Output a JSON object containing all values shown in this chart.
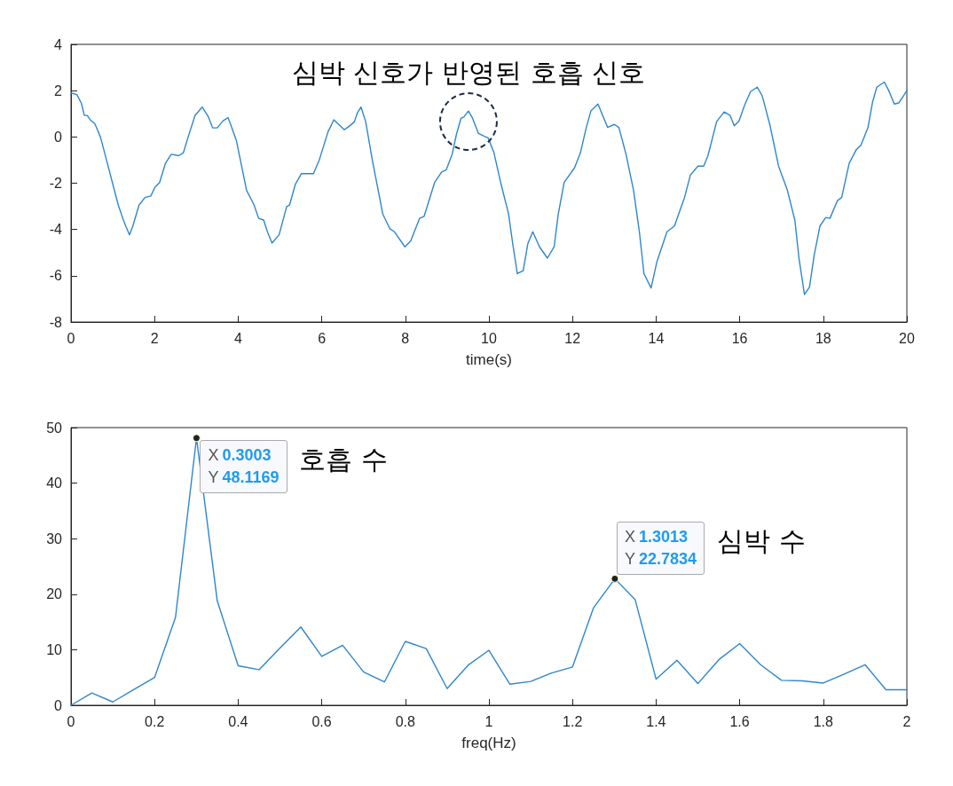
{
  "chart_data": [
    {
      "type": "line",
      "color": "#2f86cc",
      "xlabel": "time(s)",
      "xlim": [
        0,
        20
      ],
      "ylim": [
        -8,
        4
      ],
      "xticks": [
        0,
        2,
        4,
        6,
        8,
        10,
        12,
        14,
        16,
        18,
        20
      ],
      "yticks": [
        -8,
        -6,
        -4,
        -2,
        0,
        2,
        4
      ],
      "grid": false,
      "marker": "none",
      "line_style": "solid",
      "x": [
        0,
        0.14,
        0.25,
        0.32,
        0.39,
        0.46,
        0.57,
        0.64,
        0.71,
        0.85,
        0.99,
        1.13,
        1.24,
        1.31,
        1.4,
        1.48,
        1.63,
        1.77,
        1.91,
        2.01,
        2.12,
        2.26,
        2.4,
        2.58,
        2.69,
        2.83,
        2.97,
        3.14,
        3.29,
        3.39,
        3.5,
        3.64,
        3.76,
        3.82,
        3.96,
        4.2,
        4.38,
        4.49,
        4.61,
        4.7,
        4.81,
        4.98,
        5.16,
        5.23,
        5.37,
        5.51,
        5.8,
        5.94,
        6.15,
        6.29,
        6.54,
        6.64,
        6.78,
        6.85,
        6.94,
        7.05,
        7.21,
        7.46,
        7.63,
        7.74,
        7.99,
        8.13,
        8.34,
        8.45,
        8.7,
        8.87,
        8.98,
        9.12,
        9.22,
        9.33,
        9.4,
        9.51,
        9.61,
        9.75,
        9.89,
        9.98,
        10.12,
        10.29,
        10.47,
        10.57,
        10.68,
        10.82,
        10.93,
        11.05,
        11.21,
        11.4,
        11.56,
        11.66,
        11.8,
        12.05,
        12.19,
        12.33,
        12.44,
        12.61,
        12.72,
        12.84,
        13,
        13.11,
        13.28,
        13.46,
        13.6,
        13.71,
        13.88,
        14.02,
        14.26,
        14.44,
        14.54,
        14.68,
        14.82,
        15,
        15.14,
        15.24,
        15.45,
        15.63,
        15.77,
        15.87,
        15.98,
        16.12,
        16.26,
        16.42,
        16.54,
        16.72,
        16.93,
        17.14,
        17.32,
        17.42,
        17.55,
        17.67,
        17.78,
        17.92,
        18.06,
        18.16,
        18.34,
        18.44,
        18.62,
        18.79,
        18.9,
        19.07,
        19.18,
        19.28,
        19.46,
        19.56,
        19.7,
        19.81,
        20
      ],
      "values": [
        1.9,
        1.83,
        1.45,
        0.93,
        0.93,
        0.74,
        0.57,
        0.28,
        -0.04,
        -1,
        -1.97,
        -2.94,
        -3.52,
        -3.85,
        -4.23,
        -3.85,
        -2.94,
        -2.62,
        -2.55,
        -2.17,
        -1.97,
        -1.14,
        -0.75,
        -0.81,
        -0.68,
        0.15,
        0.93,
        1.29,
        0.86,
        0.39,
        0.39,
        0.7,
        0.83,
        0.54,
        -0.17,
        -2.3,
        -2.94,
        -3.52,
        -3.59,
        -4.1,
        -4.59,
        -4.23,
        -3.01,
        -2.94,
        -2.04,
        -1.59,
        -1.59,
        -1,
        0.22,
        0.74,
        0.31,
        0.44,
        0.65,
        1.03,
        1.29,
        0.67,
        -1,
        -3.33,
        -3.97,
        -4.1,
        -4.75,
        -4.49,
        -3.52,
        -3.43,
        -1.97,
        -1.52,
        -1.42,
        -0.75,
        0.09,
        0.8,
        0.86,
        1.12,
        0.8,
        0.15,
        0.03,
        -0.04,
        -0.68,
        -2.04,
        -3.33,
        -4.62,
        -5.91,
        -5.78,
        -4.62,
        -4.1,
        -4.75,
        -5.24,
        -4.75,
        -3.33,
        -1.97,
        -1.33,
        -0.68,
        0.41,
        1.12,
        1.42,
        0.93,
        0.41,
        0.54,
        0.41,
        -0.75,
        -2.3,
        -4.1,
        -5.91,
        -6.53,
        -5.39,
        -4.1,
        -3.85,
        -3.33,
        -2.62,
        -1.65,
        -1.26,
        -1.26,
        -0.81,
        0.67,
        1.08,
        0.93,
        0.48,
        0.67,
        1.38,
        1.96,
        2.15,
        1.77,
        0.54,
        -1.26,
        -2.3,
        -3.59,
        -5.26,
        -6.81,
        -6.49,
        -5.14,
        -3.85,
        -3.48,
        -3.52,
        -2.75,
        -2.62,
        -1.14,
        -0.55,
        -0.36,
        0.41,
        1.51,
        2.15,
        2.37,
        2.03,
        1.42,
        1.47,
        2
      ],
      "annotations": [
        {
          "text": "심박 신호가 반영된 호흡 신호",
          "x": 9.51,
          "y": 1.12
        }
      ]
    },
    {
      "type": "line",
      "color": "#2f86cc",
      "xlabel": "freq(Hz)",
      "xlim": [
        0,
        2
      ],
      "ylim": [
        0,
        50
      ],
      "xticks": [
        0,
        0.2,
        0.4,
        0.6,
        0.8,
        1,
        1.2,
        1.4,
        1.6,
        1.8,
        2
      ],
      "yticks": [
        0,
        10,
        20,
        30,
        40,
        50
      ],
      "grid": false,
      "marker": "none",
      "line_style": "solid",
      "x": [
        0,
        0.05,
        0.1,
        0.15,
        0.2,
        0.25,
        0.3003,
        0.35,
        0.4,
        0.45,
        0.5,
        0.55,
        0.6,
        0.65,
        0.7,
        0.75,
        0.8,
        0.85,
        0.9,
        0.95,
        1,
        1.05,
        1.1,
        1.15,
        1.2,
        1.25,
        1.3013,
        1.35,
        1.4,
        1.45,
        1.5,
        1.55,
        1.6,
        1.65,
        1.7,
        1.75,
        1.8,
        1.85,
        1.9,
        1.95,
        2
      ],
      "values": [
        0,
        2.2,
        0.6,
        2.8,
        5,
        15.8,
        48.1169,
        18.8,
        7.1,
        6.4,
        10.3,
        14.1,
        8.8,
        10.8,
        6,
        4.2,
        11.5,
        10.2,
        3,
        7.2,
        9.9,
        3.8,
        4.3,
        5.8,
        6.9,
        17.5,
        22.7834,
        19,
        4.7,
        8.1,
        3.9,
        8.2,
        11.1,
        7.3,
        4.5,
        4.4,
        4,
        5.6,
        7.3,
        2.8,
        2.8
      ],
      "annotations": [
        {
          "text": "X 0.3003\nY 48.1169",
          "x": 0.3003,
          "y": 48.1169
        },
        {
          "text": "X 1.3013\nY 22.7834",
          "x": 1.3013,
          "y": 22.7834
        },
        "호흡 수",
        "심박 수"
      ]
    }
  ]
}
